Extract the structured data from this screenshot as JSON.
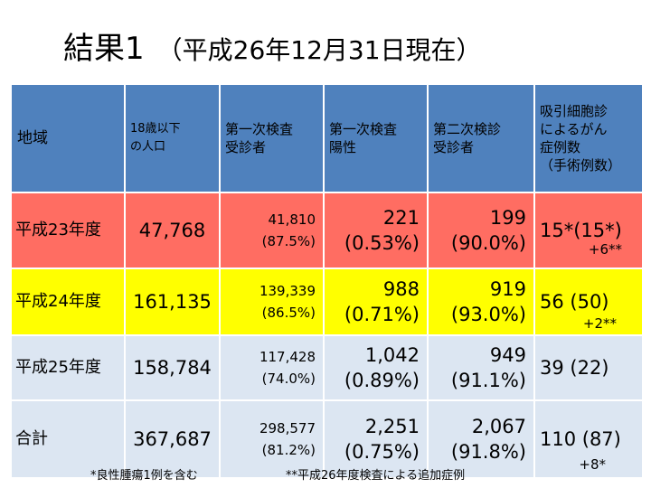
{
  "title": {
    "main": "結果1",
    "sub": "（平成26年12月31日現在）"
  },
  "table": {
    "headers": {
      "region": "地域",
      "population": [
        "18歳以下",
        "の人口"
      ],
      "first_exam": [
        "第一次検査",
        "受診者"
      ],
      "first_positive": [
        "第一次検査",
        "陽性"
      ],
      "second_exam": [
        "第二次検診",
        "受診者"
      ],
      "cases": [
        "吸引細胞診",
        "によるがん",
        "症例数",
        "（手術例数）"
      ]
    },
    "rows": [
      {
        "label": "平成23年度",
        "population": "47,768",
        "first_exam": [
          "41,810",
          "(87.5%)"
        ],
        "positive": [
          "221",
          "(0.53%)"
        ],
        "second": [
          "199",
          "(90.0%)"
        ],
        "cases": "15*(15*)",
        "extra": "+6**"
      },
      {
        "label": "平成24年度",
        "population": "161,135",
        "first_exam": [
          "139,339",
          "(86.5%)"
        ],
        "positive": [
          "988",
          "(0.71%)"
        ],
        "second": [
          "919",
          "(93.0%)"
        ],
        "cases": "56  (50)",
        "extra": "+2**"
      },
      {
        "label": "平成25年度",
        "population": "158,784",
        "first_exam": [
          "117,428",
          "(74.0%)"
        ],
        "positive": [
          "1,042",
          "(0.89%)"
        ],
        "second": [
          "949",
          "(91.1%)"
        ],
        "cases": "39  (22)",
        "extra": ""
      },
      {
        "label": "合計",
        "population": "367,687",
        "first_exam": [
          "298,577",
          "(81.2%)"
        ],
        "positive": [
          "2,251",
          "(0.75%)"
        ],
        "second": [
          "2,067",
          "(91.8%)"
        ],
        "cases": "110 (87)",
        "extra": "+8*"
      }
    ]
  },
  "footnotes": {
    "note1": "*良性腫瘍1例を含む",
    "note2": "**平成26年度検査による追加症例"
  },
  "colors": {
    "header": "#4f81bd",
    "row_h23": "#ff6d62",
    "row_h24": "#ffff00",
    "row_other": "#dce6f2"
  }
}
